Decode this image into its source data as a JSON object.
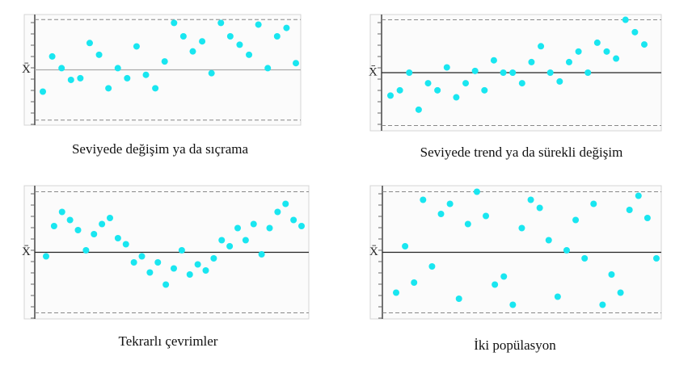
{
  "chart_data": [
    {
      "type": "scatter",
      "title": "Seviyede değişim ya da sıçrama",
      "y_label": "X̄",
      "color": "#19e6f0",
      "center_color": "#aaaaaa",
      "ylim": [
        -3.3,
        3.3
      ],
      "limits": [
        -3,
        3
      ],
      "center": 0,
      "values": [
        -1.3,
        0.8,
        0.1,
        -0.6,
        -0.5,
        1.6,
        0.9,
        -1.1,
        0.1,
        -0.5,
        1.4,
        -0.3,
        -1.1,
        0.5,
        2.8,
        2.0,
        1.1,
        1.7,
        -0.2,
        2.8,
        2.0,
        1.5,
        0.9,
        2.7,
        0.1,
        2.0,
        2.5,
        0.4
      ]
    },
    {
      "type": "scatter",
      "title": "Seviyede trend ya da sürekli değişim",
      "y_label": "X̄",
      "color": "#19e6f0",
      "center_color": "#222222",
      "ylim": [
        -3.3,
        3.3
      ],
      "limits": [
        -3,
        3
      ],
      "center": 0,
      "values": [
        -1.3,
        -1.0,
        0,
        -2.1,
        -0.6,
        -1.0,
        0.3,
        -1.4,
        -0.6,
        0.1,
        -1.0,
        0.7,
        0,
        0,
        -0.6,
        0.6,
        1.5,
        0,
        -0.5,
        0.6,
        1.2,
        0,
        1.7,
        1.2,
        0.8,
        3.0,
        2.3,
        1.6
      ]
    },
    {
      "type": "scatter",
      "title": "Tekrarlı çevrimler",
      "y_label": "X̄",
      "color": "#19e6f0",
      "center_color": "#222222",
      "ylim": [
        -3.3,
        3.3
      ],
      "limits": [
        -3,
        3
      ],
      "center": 0,
      "values": [
        -0.2,
        1.3,
        2.0,
        1.6,
        1.1,
        0.1,
        0.9,
        1.4,
        1.7,
        0.7,
        0.4,
        -0.5,
        -0.2,
        -1.0,
        -0.5,
        -1.6,
        -0.8,
        0.1,
        -1.1,
        -0.6,
        -0.9,
        -0.3,
        0.6,
        0.3,
        1.2,
        0.6,
        1.4,
        -0.1,
        1.2,
        2.0,
        2.4,
        1.6,
        1.3
      ]
    },
    {
      "type": "scatter",
      "title": "İki popülasyon",
      "y_label": "X̄",
      "color": "#19e6f0",
      "center_color": "#222222",
      "ylim": [
        -3.3,
        3.3
      ],
      "limits": [
        -3,
        3
      ],
      "center": 0,
      "values": [
        -2.0,
        0.3,
        -1.5,
        2.6,
        -0.7,
        1.9,
        2.4,
        -2.3,
        1.4,
        3.0,
        1.8,
        -1.6,
        -1.2,
        -2.6,
        1.2,
        2.6,
        2.2,
        0.6,
        -2.2,
        0.1,
        1.6,
        -0.3,
        2.4,
        -2.6,
        -1.1,
        -2.0,
        2.1,
        2.8,
        1.7,
        -0.3
      ]
    }
  ]
}
